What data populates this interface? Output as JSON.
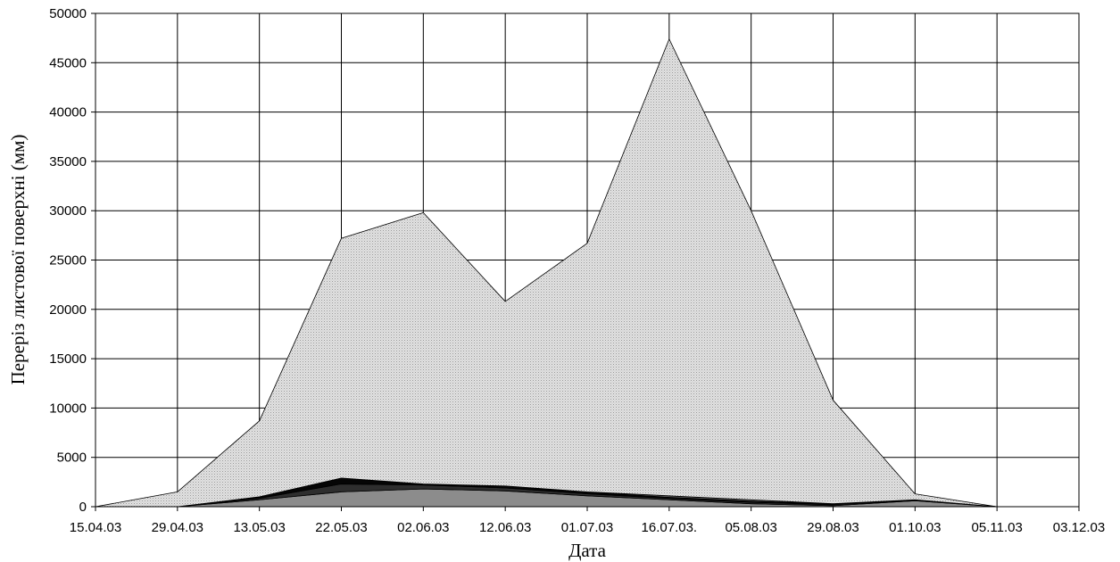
{
  "chart_data": {
    "type": "area",
    "stacked": true,
    "xlabel": "Дата",
    "ylabel": "Переріз листової поверхні (мм)",
    "ylim": [
      0,
      50000
    ],
    "yticks": [
      "0",
      "5000",
      "10000",
      "15000",
      "20000",
      "25000",
      "30000",
      "35000",
      "40000",
      "45000",
      "50000"
    ],
    "categories": [
      "15.04.03",
      "29.04.03",
      "13.05.03",
      "22.05.03",
      "02.06.03",
      "12.06.03",
      "01.07.03",
      "16.07.03.",
      "05.08.03",
      "29.08.03",
      "01.10.03",
      "05.11.03",
      "03.12.03"
    ],
    "grid": true,
    "legend": "none",
    "series": [
      {
        "color": "#8c8c8c",
        "values": [
          0,
          0,
          700,
          1500,
          1800,
          1600,
          1100,
          700,
          300,
          100,
          600,
          0,
          0
        ]
      },
      {
        "color": "#2e2e2e",
        "values": [
          0,
          0,
          150,
          800,
          400,
          300,
          200,
          150,
          150,
          100,
          50,
          0,
          0
        ]
      },
      {
        "color": "#050505",
        "values": [
          0,
          0,
          150,
          600,
          100,
          200,
          200,
          100,
          100,
          100,
          50,
          0,
          0
        ]
      },
      {
        "color": "#6a6a6a",
        "values": [
          0,
          0,
          0,
          0,
          0,
          0,
          0,
          150,
          150,
          0,
          0,
          0,
          0
        ]
      },
      {
        "color": "#e2e2e2",
        "values": [
          0,
          1500,
          7700,
          24300,
          27500,
          18700,
          25200,
          46300,
          29300,
          10500,
          600,
          0,
          0
        ]
      }
    ]
  }
}
